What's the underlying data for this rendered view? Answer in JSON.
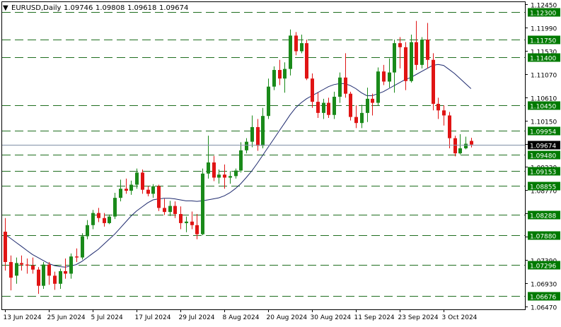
{
  "header": {
    "arrow": "▼",
    "symbol": "EURUSD,Daily",
    "open": "1.09746",
    "high": "1.09808",
    "low": "1.09618",
    "close": "1.09674"
  },
  "chart_data": {
    "type": "candlestick",
    "title": "EURUSD,Daily",
    "ylim": [
      1.0647,
      1.1245
    ],
    "grid": false,
    "colors": {
      "bullish": "#1a8a1a",
      "bearish": "#e01414",
      "moving_average": "#1e2a6e",
      "level_line": "#1f6e1f",
      "level_label_bg": "#007a00",
      "current_price_line": "#7f8fa6",
      "current_price_bg": "#000000"
    },
    "y_ticks": [
      "1.12450",
      "1.11990",
      "1.11530",
      "1.11070",
      "1.10610",
      "1.10150",
      "1.09690",
      "1.09230",
      "1.08770",
      "1.08310",
      "1.07850",
      "1.07390",
      "1.06930",
      "1.06470"
    ],
    "y_tick_values": [
      1.1245,
      1.1199,
      1.1153,
      1.1107,
      1.1061,
      1.1015,
      1.0969,
      1.0923,
      1.0877,
      1.0831,
      1.0785,
      1.0739,
      1.0693,
      1.0647
    ],
    "x_ticks": [
      {
        "label": "13 Jun 2024",
        "index": 0
      },
      {
        "label": "25 Jun 2024",
        "index": 8
      },
      {
        "label": "5 Jul 2024",
        "index": 16
      },
      {
        "label": "17 Jul 2024",
        "index": 24
      },
      {
        "label": "29 Jul 2024",
        "index": 32
      },
      {
        "label": "8 Aug 2024",
        "index": 40
      },
      {
        "label": "20 Aug 2024",
        "index": 48
      },
      {
        "label": "30 Aug 2024",
        "index": 56
      },
      {
        "label": "11 Sep 2024",
        "index": 64
      },
      {
        "label": "23 Sep 2024",
        "index": 72
      },
      {
        "label": "3 Oct 2024",
        "index": 80
      }
    ],
    "levels": [
      "1.12300",
      "1.11750",
      "1.11400",
      "1.10450",
      "1.09954",
      "1.09480",
      "1.09153",
      "1.08855",
      "1.08288",
      "1.07880",
      "1.07296",
      "1.06676"
    ],
    "level_values": [
      1.123,
      1.1175,
      1.114,
      1.1045,
      1.09954,
      1.0948,
      1.09153,
      1.08855,
      1.08288,
      1.0788,
      1.07296,
      1.06676
    ],
    "current_price": "1.09674",
    "current_price_value": 1.09674,
    "candles": [
      {
        "o": 1.0795,
        "h": 1.0822,
        "l": 1.0718,
        "c": 1.0735
      },
      {
        "o": 1.0735,
        "h": 1.0748,
        "l": 1.0679,
        "c": 1.0704
      },
      {
        "o": 1.0708,
        "h": 1.0744,
        "l": 1.0692,
        "c": 1.0733
      },
      {
        "o": 1.0733,
        "h": 1.0748,
        "l": 1.0718,
        "c": 1.073
      },
      {
        "o": 1.073,
        "h": 1.0742,
        "l": 1.0712,
        "c": 1.0728
      },
      {
        "o": 1.0728,
        "h": 1.0744,
        "l": 1.0712,
        "c": 1.072
      },
      {
        "o": 1.072,
        "h": 1.0725,
        "l": 1.0672,
        "c": 1.0688
      },
      {
        "o": 1.0688,
        "h": 1.0735,
        "l": 1.0682,
        "c": 1.073
      },
      {
        "o": 1.073,
        "h": 1.0735,
        "l": 1.069,
        "c": 1.0708
      },
      {
        "o": 1.0708,
        "h": 1.0716,
        "l": 1.068,
        "c": 1.0692
      },
      {
        "o": 1.0692,
        "h": 1.0722,
        "l": 1.0682,
        "c": 1.0717
      },
      {
        "o": 1.0717,
        "h": 1.0742,
        "l": 1.0702,
        "c": 1.0712
      },
      {
        "o": 1.0712,
        "h": 1.0752,
        "l": 1.0702,
        "c": 1.0746
      },
      {
        "o": 1.0746,
        "h": 1.0762,
        "l": 1.0735,
        "c": 1.0744
      },
      {
        "o": 1.0744,
        "h": 1.0792,
        "l": 1.074,
        "c": 1.0786
      },
      {
        "o": 1.0786,
        "h": 1.0818,
        "l": 1.078,
        "c": 1.0808
      },
      {
        "o": 1.0808,
        "h": 1.0838,
        "l": 1.08,
        "c": 1.0832
      },
      {
        "o": 1.0832,
        "h": 1.0842,
        "l": 1.0814,
        "c": 1.0822
      },
      {
        "o": 1.0822,
        "h": 1.0832,
        "l": 1.0805,
        "c": 1.0812
      },
      {
        "o": 1.0812,
        "h": 1.0829,
        "l": 1.081,
        "c": 1.0825
      },
      {
        "o": 1.0825,
        "h": 1.0872,
        "l": 1.082,
        "c": 1.0862
      },
      {
        "o": 1.0862,
        "h": 1.0898,
        "l": 1.0855,
        "c": 1.088
      },
      {
        "o": 1.088,
        "h": 1.09,
        "l": 1.087,
        "c": 1.0876
      },
      {
        "o": 1.0876,
        "h": 1.0896,
        "l": 1.0868,
        "c": 1.0888
      },
      {
        "o": 1.0888,
        "h": 1.092,
        "l": 1.088,
        "c": 1.0912
      },
      {
        "o": 1.0912,
        "h": 1.0918,
        "l": 1.087,
        "c": 1.0878
      },
      {
        "o": 1.0878,
        "h": 1.0885,
        "l": 1.0865,
        "c": 1.087
      },
      {
        "o": 1.087,
        "h": 1.0889,
        "l": 1.0862,
        "c": 1.0885
      },
      {
        "o": 1.0885,
        "h": 1.0888,
        "l": 1.0836,
        "c": 1.0842
      },
      {
        "o": 1.0842,
        "h": 1.086,
        "l": 1.0828,
        "c": 1.0834
      },
      {
        "o": 1.0834,
        "h": 1.0856,
        "l": 1.0826,
        "c": 1.0846
      },
      {
        "o": 1.0846,
        "h": 1.0855,
        "l": 1.0822,
        "c": 1.083
      },
      {
        "o": 1.083,
        "h": 1.0845,
        "l": 1.08,
        "c": 1.0812
      },
      {
        "o": 1.0812,
        "h": 1.0825,
        "l": 1.0794,
        "c": 1.0815
      },
      {
        "o": 1.0815,
        "h": 1.0835,
        "l": 1.08,
        "c": 1.0808
      },
      {
        "o": 1.0808,
        "h": 1.083,
        "l": 1.078,
        "c": 1.079
      },
      {
        "o": 1.079,
        "h": 1.092,
        "l": 1.0788,
        "c": 1.091
      },
      {
        "o": 1.091,
        "h": 1.0985,
        "l": 1.09,
        "c": 1.0932
      },
      {
        "o": 1.0932,
        "h": 1.0945,
        "l": 1.0895,
        "c": 1.0902
      },
      {
        "o": 1.0902,
        "h": 1.0918,
        "l": 1.089,
        "c": 1.0908
      },
      {
        "o": 1.0908,
        "h": 1.0928,
        "l": 1.088,
        "c": 1.0902
      },
      {
        "o": 1.0902,
        "h": 1.0915,
        "l": 1.089,
        "c": 1.0905
      },
      {
        "o": 1.0905,
        "h": 1.092,
        "l": 1.09,
        "c": 1.0916
      },
      {
        "o": 1.0916,
        "h": 1.0972,
        "l": 1.0912,
        "c": 1.0956
      },
      {
        "o": 1.0956,
        "h": 1.098,
        "l": 1.095,
        "c": 1.0973
      },
      {
        "o": 1.0973,
        "h": 1.1025,
        "l": 1.0962,
        "c": 1.1002
      },
      {
        "o": 1.1002,
        "h": 1.1018,
        "l": 1.0955,
        "c": 1.0965
      },
      {
        "o": 1.0965,
        "h": 1.104,
        "l": 1.096,
        "c": 1.1024
      },
      {
        "o": 1.1024,
        "h": 1.1098,
        "l": 1.1018,
        "c": 1.1082
      },
      {
        "o": 1.1082,
        "h": 1.1122,
        "l": 1.1075,
        "c": 1.1115
      },
      {
        "o": 1.1115,
        "h": 1.1135,
        "l": 1.1085,
        "c": 1.1098
      },
      {
        "o": 1.1098,
        "h": 1.113,
        "l": 1.107,
        "c": 1.1117
      },
      {
        "o": 1.1117,
        "h": 1.1195,
        "l": 1.1104,
        "c": 1.1183
      },
      {
        "o": 1.1183,
        "h": 1.119,
        "l": 1.1144,
        "c": 1.1152
      },
      {
        "o": 1.1152,
        "h": 1.1185,
        "l": 1.1148,
        "c": 1.1168
      },
      {
        "o": 1.1168,
        "h": 1.1175,
        "l": 1.1095,
        "c": 1.1098
      },
      {
        "o": 1.1098,
        "h": 1.1108,
        "l": 1.104,
        "c": 1.1052
      },
      {
        "o": 1.1052,
        "h": 1.107,
        "l": 1.102,
        "c": 1.103
      },
      {
        "o": 1.103,
        "h": 1.1058,
        "l": 1.1018,
        "c": 1.105
      },
      {
        "o": 1.105,
        "h": 1.106,
        "l": 1.102,
        "c": 1.1026
      },
      {
        "o": 1.1026,
        "h": 1.1072,
        "l": 1.1018,
        "c": 1.1062
      },
      {
        "o": 1.1062,
        "h": 1.111,
        "l": 1.105,
        "c": 1.11
      },
      {
        "o": 1.11,
        "h": 1.1148,
        "l": 1.106,
        "c": 1.1068
      },
      {
        "o": 1.1068,
        "h": 1.1072,
        "l": 1.1015,
        "c": 1.1022
      },
      {
        "o": 1.1022,
        "h": 1.1045,
        "l": 1.1,
        "c": 1.101
      },
      {
        "o": 1.101,
        "h": 1.1046,
        "l": 1.1,
        "c": 1.103
      },
      {
        "o": 1.103,
        "h": 1.108,
        "l": 1.1012,
        "c": 1.1058
      },
      {
        "o": 1.1058,
        "h": 1.1068,
        "l": 1.1025,
        "c": 1.105
      },
      {
        "o": 1.105,
        "h": 1.112,
        "l": 1.1045,
        "c": 1.1112
      },
      {
        "o": 1.1112,
        "h": 1.1125,
        "l": 1.1085,
        "c": 1.1092
      },
      {
        "o": 1.1092,
        "h": 1.1138,
        "l": 1.108,
        "c": 1.111
      },
      {
        "o": 1.111,
        "h": 1.1175,
        "l": 1.107,
        "c": 1.1168
      },
      {
        "o": 1.1168,
        "h": 1.118,
        "l": 1.1118,
        "c": 1.116
      },
      {
        "o": 1.116,
        "h": 1.117,
        "l": 1.1075,
        "c": 1.1093
      },
      {
        "o": 1.1093,
        "h": 1.1185,
        "l": 1.109,
        "c": 1.117
      },
      {
        "o": 1.117,
        "h": 1.1212,
        "l": 1.1115,
        "c": 1.1125
      },
      {
        "o": 1.1125,
        "h": 1.118,
        "l": 1.1118,
        "c": 1.1175
      },
      {
        "o": 1.1175,
        "h": 1.1208,
        "l": 1.1118,
        "c": 1.1135
      },
      {
        "o": 1.1135,
        "h": 1.1148,
        "l": 1.1035,
        "c": 1.1048
      },
      {
        "o": 1.1048,
        "h": 1.106,
        "l": 1.1018,
        "c": 1.1035
      },
      {
        "o": 1.1035,
        "h": 1.1045,
        "l": 1.1005,
        "c": 1.1025
      },
      {
        "o": 1.1025,
        "h": 1.1032,
        "l": 1.096,
        "c": 1.098
      },
      {
        "o": 1.098,
        "h": 1.0985,
        "l": 1.0944,
        "c": 1.095
      },
      {
        "o": 1.095,
        "h": 1.0988,
        "l": 1.0948,
        "c": 1.096
      },
      {
        "o": 1.096,
        "h": 1.0983,
        "l": 1.0958,
        "c": 1.0969
      },
      {
        "o": 1.09746,
        "h": 1.09808,
        "l": 1.09618,
        "c": 1.09674
      }
    ],
    "moving_average": [
      1.079,
      1.0782,
      1.0774,
      1.0766,
      1.0758,
      1.075,
      1.0744,
      1.0738,
      1.0732,
      1.0728,
      1.0726,
      1.0725,
      1.0727,
      1.073,
      1.0736,
      1.0744,
      1.0752,
      1.076,
      1.077,
      1.078,
      1.079,
      1.0802,
      1.0814,
      1.0826,
      1.0836,
      1.0844,
      1.0852,
      1.0858,
      1.086,
      1.0861,
      1.0861,
      1.086,
      1.0858,
      1.0856,
      1.0856,
      1.0855,
      1.0856,
      1.0858,
      1.086,
      1.0862,
      1.0866,
      1.0872,
      1.088,
      1.089,
      1.0902,
      1.0915,
      1.093,
      1.0946,
      1.0962,
      1.0978,
      1.0994,
      1.101,
      1.1026,
      1.104,
      1.105,
      1.1058,
      1.1064,
      1.107,
      1.1076,
      1.1082,
      1.1086,
      1.1088,
      1.1088,
      1.1084,
      1.1078,
      1.107,
      1.1064,
      1.1064,
      1.1068,
      1.1072,
      1.1078,
      1.1084,
      1.109,
      1.1096,
      1.11,
      1.1106,
      1.1112,
      1.1118,
      1.1124,
      1.1126,
      1.1124,
      1.1116,
      1.1108,
      1.1098,
      1.1088,
      1.1078
    ]
  }
}
